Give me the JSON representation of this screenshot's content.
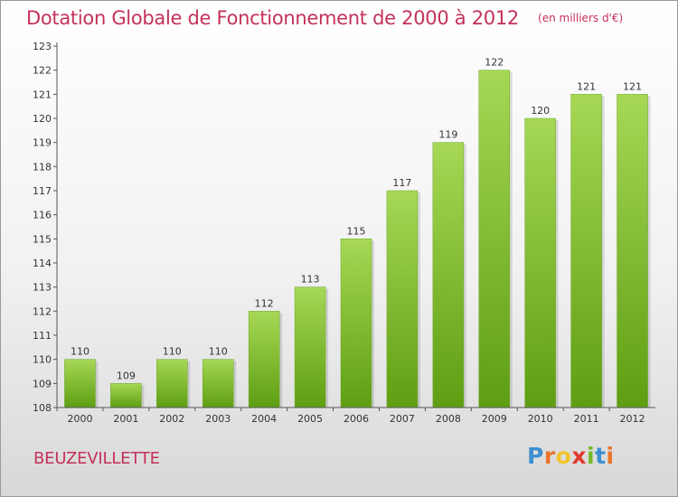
{
  "header": {
    "title": "Dotation Globale de Fonctionnement de 2000 à 2012",
    "unit": "(en milliers d'€)"
  },
  "footer": {
    "commune": "BEUZEVILLETTE",
    "logo_letters": [
      "P",
      "r",
      "o",
      "x",
      "i",
      "t",
      "i"
    ],
    "logo_colors": [
      "#3c8fd0",
      "#e8742a",
      "#f2c32b",
      "#e23a2e",
      "#76b82a",
      "#3c8fd0",
      "#e8742a"
    ]
  },
  "colors": {
    "bar_light": "#a6d855",
    "bar_dark": "#5e9e12",
    "title": "#c4325a",
    "axis": "#555555"
  },
  "chart_data": {
    "type": "bar",
    "title": "Dotation Globale de Fonctionnement de 2000 à 2012",
    "subtitle": "(en milliers d'€)",
    "categories": [
      "2000",
      "2001",
      "2002",
      "2003",
      "2004",
      "2005",
      "2006",
      "2007",
      "2008",
      "2009",
      "2010",
      "2011",
      "2012"
    ],
    "values": [
      110,
      109,
      110,
      110,
      112,
      113,
      115,
      117,
      119,
      122,
      120,
      121,
      121
    ],
    "data_labels": [
      "110",
      "109",
      "110",
      "110",
      "112",
      "113",
      "115",
      "117",
      "119",
      "122",
      "120",
      "121",
      "121"
    ],
    "ylim": [
      108,
      123
    ],
    "yticks": [
      108,
      109,
      110,
      111,
      112,
      113,
      114,
      115,
      116,
      117,
      118,
      119,
      120,
      121,
      122,
      123
    ],
    "ytick_labels": [
      "108",
      "109",
      "110",
      "111",
      "112",
      "113",
      "114",
      "115",
      "116",
      "117",
      "118",
      "119",
      "120",
      "121",
      "122",
      "123"
    ],
    "grid": false,
    "legend": "none"
  }
}
